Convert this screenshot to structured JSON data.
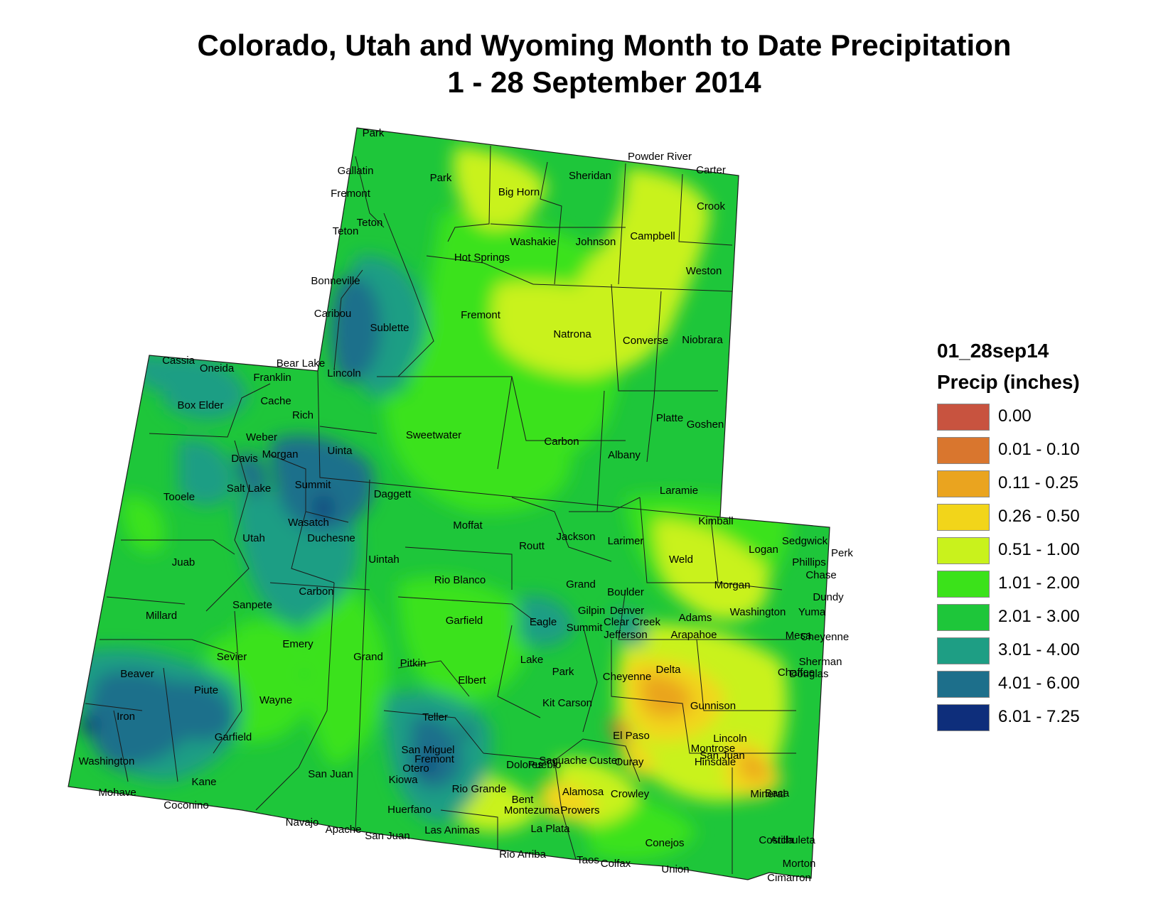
{
  "title_line1": "Colorado, Utah and Wyoming Month to Date Precipitation",
  "title_line2": "1 - 28 September 2014",
  "legend": {
    "layer_name": "01_28sep14",
    "field_name": "Precip (inches)",
    "classes": [
      {
        "label": "0.00",
        "color": "#c8533f"
      },
      {
        "label": "0.01 - 0.10",
        "color": "#d9762e"
      },
      {
        "label": "0.11 - 0.25",
        "color": "#eaa41f"
      },
      {
        "label": "0.26 - 0.50",
        "color": "#f2d51a"
      },
      {
        "label": "0.51 - 1.00",
        "color": "#c9f21c"
      },
      {
        "label": "1.01 - 2.00",
        "color": "#3be21a"
      },
      {
        "label": "2.01 - 3.00",
        "color": "#1ec63a"
      },
      {
        "label": "3.01 - 4.00",
        "color": "#1e9e84"
      },
      {
        "label": "4.01 - 6.00",
        "color": "#1d6f8b"
      },
      {
        "label": "6.01 - 7.25",
        "color": "#0e2e7b"
      }
    ]
  },
  "county_labels": {
    "wyoming": [
      "Park",
      "Big Horn",
      "Sheridan",
      "Powder River",
      "Carter",
      "Crook",
      "Campbell",
      "Johnson",
      "Washakie",
      "Hot Springs",
      "Weston",
      "Fremont",
      "Natrona",
      "Converse",
      "Niobrara",
      "Sublette",
      "Teton",
      "Lincoln",
      "Sweetwater",
      "Carbon",
      "Albany",
      "Platte",
      "Goshen",
      "Laramie",
      "Uinta"
    ],
    "utah": [
      "Box Elder",
      "Cache",
      "Rich",
      "Weber",
      "Davis",
      "Morgan",
      "Summit",
      "Salt Lake",
      "Tooele",
      "Utah",
      "Wasatch",
      "Duchesne",
      "Daggett",
      "Uintah",
      "Juab",
      "Millard",
      "Sanpete",
      "Carbon",
      "Emery",
      "Grand",
      "Sevier",
      "Beaver",
      "Piute",
      "Wayne",
      "Iron",
      "Garfield",
      "Washington",
      "Kane",
      "San Juan"
    ],
    "colorado": [
      "Moffat",
      "Routt",
      "Jackson",
      "Larimer",
      "Weld",
      "Logan",
      "Sedgwick",
      "Phillips",
      "Rio Blanco",
      "Grand",
      "Boulder",
      "Morgan",
      "Washington",
      "Yuma",
      "Garfield",
      "Eagle",
      "Summit",
      "Gilpin",
      "Denver",
      "Clear Creek",
      "Adams",
      "Jefferson",
      "Arapahoe",
      "Mesa",
      "Pitkin",
      "Lake",
      "Park",
      "Douglas",
      "Elbert",
      "Kit Carson",
      "Cheyenne",
      "Delta",
      "Gunnison",
      "Chaffee",
      "Teller",
      "El Paso",
      "Lincoln",
      "Montrose",
      "Fremont",
      "San Miguel",
      "Ouray",
      "Hinsdale",
      "Saguache",
      "Custer",
      "Pueblo",
      "Crowley",
      "Kiowa",
      "Dolores",
      "San Juan",
      "Mineral",
      "Otero",
      "Bent",
      "Prowers",
      "Huerfano",
      "Rio Grande",
      "Alamosa",
      "Montezuma",
      "La Plata",
      "Archuleta",
      "Conejos",
      "Costilla",
      "Las Animas",
      "Baca"
    ],
    "neighbors": [
      "Park",
      "Gallatin",
      "Fremont",
      "Teton",
      "Bonneville",
      "Caribou",
      "Bear Lake",
      "Franklin",
      "Oneida",
      "Cassia",
      "Kimball",
      "Perkins",
      "Chase",
      "Dundy",
      "Cheyenne",
      "Sherman",
      "Mohave",
      "Coconino",
      "Navajo",
      "Apache",
      "San Juan",
      "Rio Arriba",
      "Taos",
      "Colfax",
      "Union",
      "Morton",
      "Cimarron"
    ]
  }
}
